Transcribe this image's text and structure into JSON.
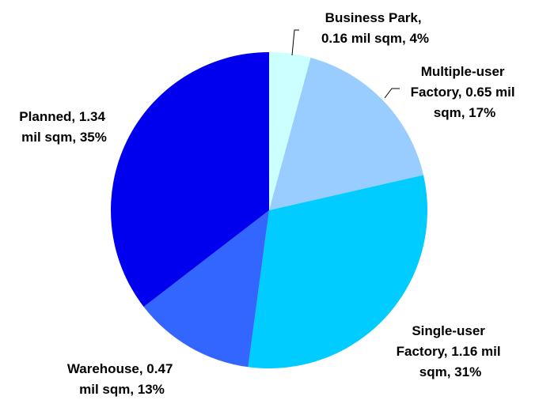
{
  "chart_data": {
    "type": "pie",
    "title": "",
    "start_angle_deg": 0,
    "direction": "clockwise",
    "slices": [
      {
        "label_lines": [
          "Business Park,",
          "0.16 mil sqm, 4%"
        ],
        "category": "Business Park",
        "value": 0.16,
        "unit": "mil sqm",
        "percent": 4,
        "color": "#CCFFFF"
      },
      {
        "label_lines": [
          "Multiple-user",
          "Factory, 0.65 mil",
          "sqm, 17%"
        ],
        "category": "Multiple-user Factory",
        "value": 0.65,
        "unit": "mil sqm",
        "percent": 17,
        "color": "#99CCFF"
      },
      {
        "label_lines": [
          "Single-user",
          "Factory, 1.16 mil",
          "sqm, 31%"
        ],
        "category": "Single-user Factory",
        "value": 1.16,
        "unit": "mil sqm",
        "percent": 31,
        "color": "#00CCFF"
      },
      {
        "label_lines": [
          "Warehouse, 0.47",
          "mil sqm, 13%"
        ],
        "category": "Warehouse",
        "value": 0.47,
        "unit": "mil sqm",
        "percent": 13,
        "color": "#3366FF"
      },
      {
        "label_lines": [
          "Planned, 1.34",
          "mil sqm, 35%"
        ],
        "category": "Planned",
        "value": 1.34,
        "unit": "mil sqm",
        "percent": 35,
        "color": "#0000EE"
      }
    ]
  }
}
